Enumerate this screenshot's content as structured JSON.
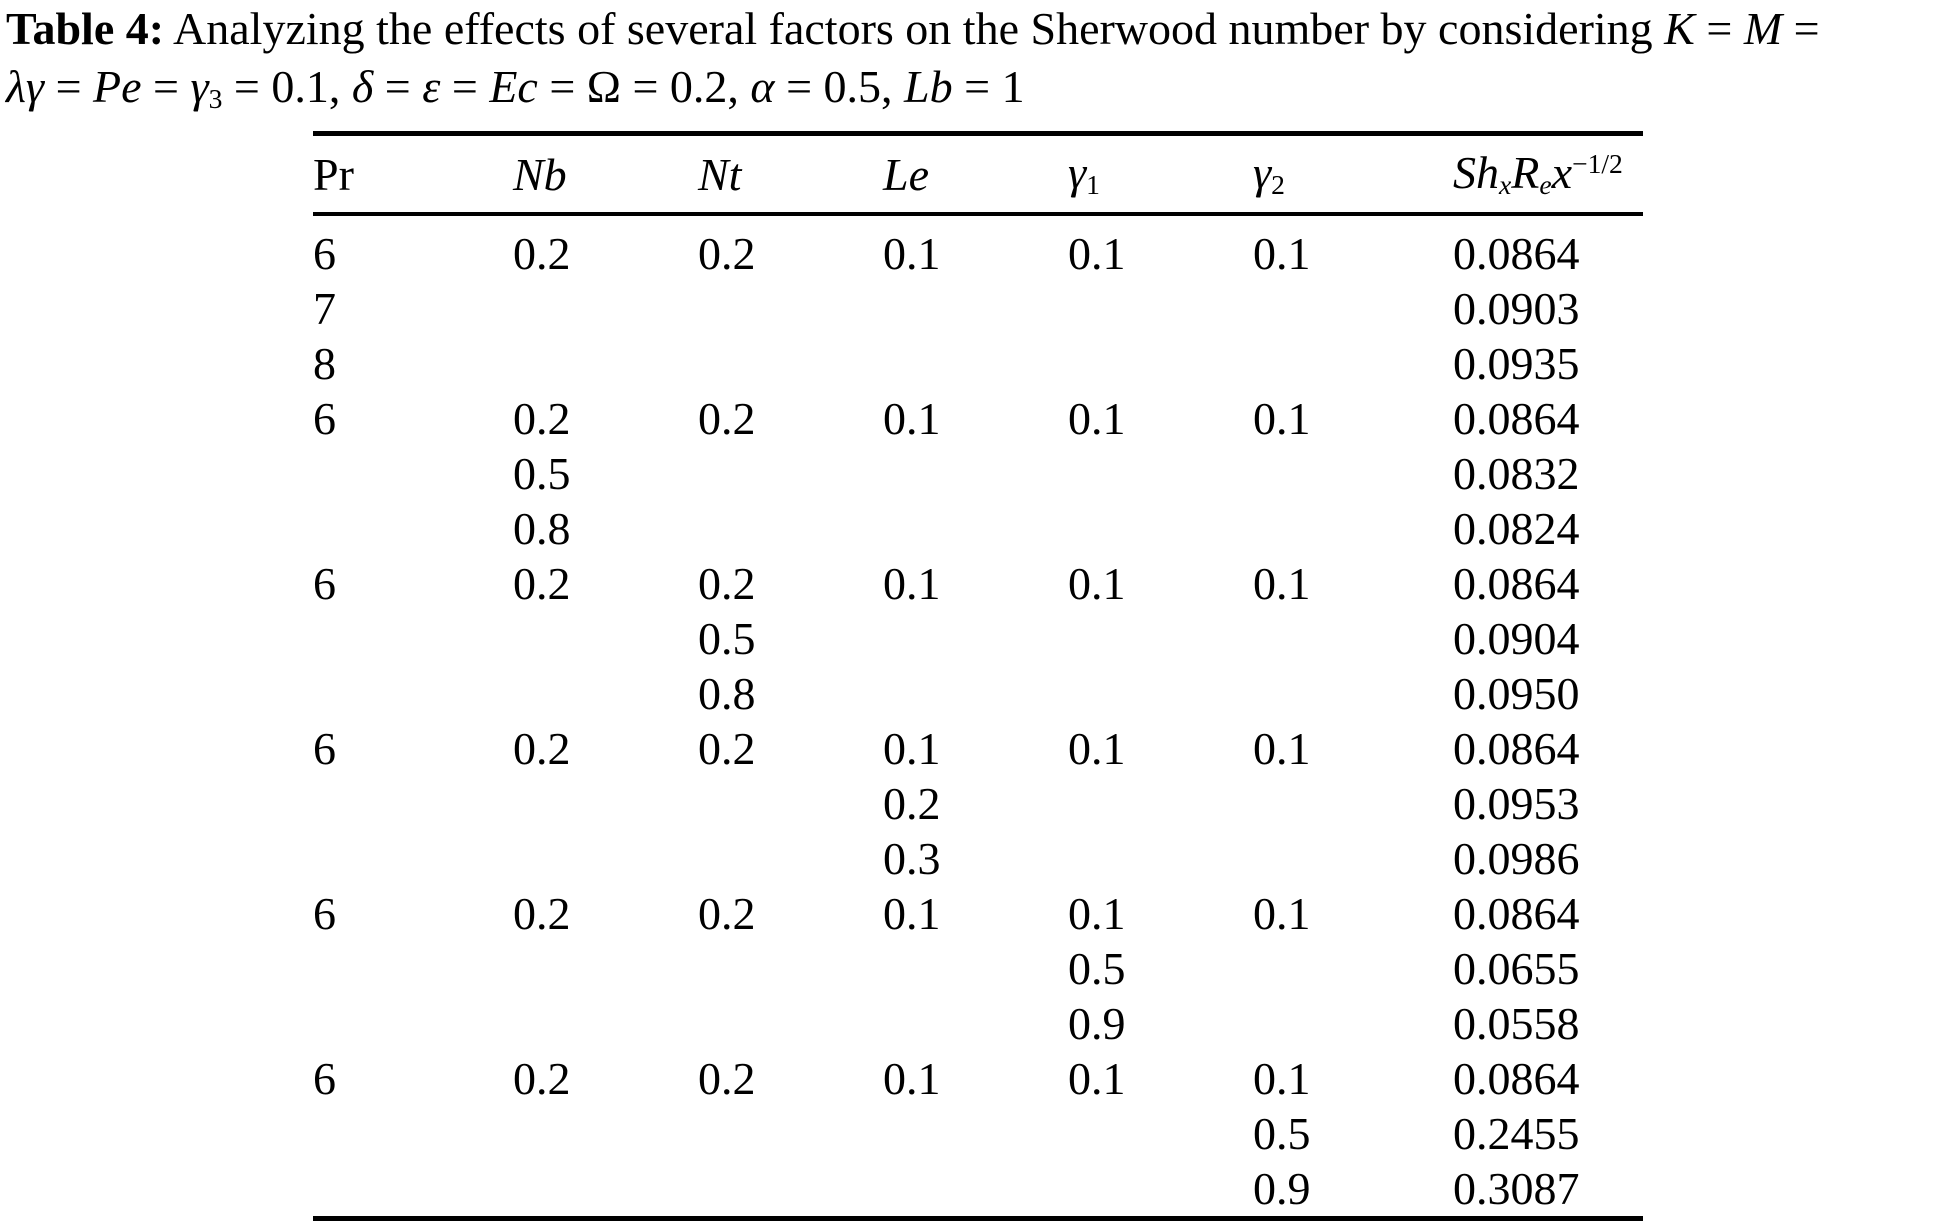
{
  "page": {
    "background": "#ffffff",
    "text_color": "#000000"
  },
  "caption": {
    "line1": [
      {
        "t": "Table 4:",
        "s": "b"
      },
      {
        "t": " Analyzing the effects of several factors on the Sherwood number by considering ",
        "s": "r"
      },
      {
        "t": "K",
        "s": "i"
      },
      {
        "t": " = ",
        "s": "r"
      },
      {
        "t": "M",
        "s": "i"
      },
      {
        "t": " =",
        "s": "r"
      }
    ],
    "line2": [
      {
        "t": "λγ",
        "s": "i"
      },
      {
        "t": " = ",
        "s": "r"
      },
      {
        "t": "Pe",
        "s": "i"
      },
      {
        "t": " = ",
        "s": "r"
      },
      {
        "t": "γ",
        "s": "i"
      },
      {
        "t": "3",
        "s": "sub"
      },
      {
        "t": " = 0.1, ",
        "s": "r"
      },
      {
        "t": "δ",
        "s": "i"
      },
      {
        "t": " = ",
        "s": "r"
      },
      {
        "t": "ε",
        "s": "i"
      },
      {
        "t": " = ",
        "s": "r"
      },
      {
        "t": "Ec",
        "s": "i"
      },
      {
        "t": " = ",
        "s": "r"
      },
      {
        "t": "Ω",
        "s": "r"
      },
      {
        "t": " = 0.2, ",
        "s": "r"
      },
      {
        "t": "α",
        "s": "i"
      },
      {
        "t": " = 0.5, ",
        "s": "r"
      },
      {
        "t": "Lb",
        "s": "i"
      },
      {
        "t": " = 1",
        "s": "r"
      }
    ]
  },
  "table": {
    "headers": [
      {
        "name": "Pr",
        "segments": [
          {
            "t": "Pr",
            "s": "r"
          }
        ]
      },
      {
        "name": "Nb",
        "segments": [
          {
            "t": "Nb",
            "s": "i"
          }
        ]
      },
      {
        "name": "Nt",
        "segments": [
          {
            "t": "Nt",
            "s": "i"
          }
        ]
      },
      {
        "name": "Le",
        "segments": [
          {
            "t": "Le",
            "s": "i"
          }
        ]
      },
      {
        "name": "gamma1",
        "segments": [
          {
            "t": "γ",
            "s": "i"
          },
          {
            "t": "1",
            "s": "sub"
          }
        ]
      },
      {
        "name": "gamma2",
        "segments": [
          {
            "t": "γ",
            "s": "i"
          },
          {
            "t": "2",
            "s": "sub"
          }
        ]
      },
      {
        "name": "ShxRex-1/2",
        "segments": [
          {
            "t": "Sh",
            "s": "i"
          },
          {
            "t": "x",
            "s": "isub"
          },
          {
            "t": "R",
            "s": "i"
          },
          {
            "t": "e",
            "s": "isub"
          },
          {
            "t": "x",
            "s": "i"
          },
          {
            "t": "−1/2",
            "s": "sup"
          }
        ]
      }
    ],
    "rows": [
      [
        "6",
        "0.2",
        "0.2",
        "0.1",
        "0.1",
        "0.1",
        "0.0864"
      ],
      [
        "7",
        "",
        "",
        "",
        "",
        "",
        "0.0903"
      ],
      [
        "8",
        "",
        "",
        "",
        "",
        "",
        "0.0935"
      ],
      [
        "6",
        "0.2",
        "0.2",
        "0.1",
        "0.1",
        "0.1",
        "0.0864"
      ],
      [
        "",
        "0.5",
        "",
        "",
        "",
        "",
        "0.0832"
      ],
      [
        "",
        "0.8",
        "",
        "",
        "",
        "",
        "0.0824"
      ],
      [
        "6",
        "0.2",
        "0.2",
        "0.1",
        "0.1",
        "0.1",
        "0.0864"
      ],
      [
        "",
        "",
        "0.5",
        "",
        "",
        "",
        "0.0904"
      ],
      [
        "",
        "",
        "0.8",
        "",
        "",
        "",
        "0.0950"
      ],
      [
        "6",
        "0.2",
        "0.2",
        "0.1",
        "0.1",
        "0.1",
        "0.0864"
      ],
      [
        "",
        "",
        "",
        "0.2",
        "",
        "",
        "0.0953"
      ],
      [
        "",
        "",
        "",
        "0.3",
        "",
        "",
        "0.0986"
      ],
      [
        "6",
        "0.2",
        "0.2",
        "0.1",
        "0.1",
        "0.1",
        "0.0864"
      ],
      [
        "",
        "",
        "",
        "",
        "0.5",
        "",
        "0.0655"
      ],
      [
        "",
        "",
        "",
        "",
        "0.9",
        "",
        "0.0558"
      ],
      [
        "6",
        "0.2",
        "0.2",
        "0.1",
        "0.1",
        "0.1",
        "0.0864"
      ],
      [
        "",
        "",
        "",
        "",
        "",
        "0.5",
        "0.2455"
      ],
      [
        "",
        "",
        "",
        "",
        "",
        "0.9",
        "0.3087"
      ]
    ]
  },
  "chart_data": {
    "type": "table",
    "title": "Table 4: Analyzing the effects of several factors on the Sherwood number by considering K = M = λγ = Pe = γ3 = 0.1, δ = ε = Ec = Ω = 0.2, α = 0.5, Lb = 1",
    "columns": [
      "Pr",
      "Nb",
      "Nt",
      "Le",
      "γ1",
      "γ2",
      "Sh_x R_e x^(-1/2)"
    ],
    "rows": [
      [
        "6",
        "0.2",
        "0.2",
        "0.1",
        "0.1",
        "0.1",
        "0.0864"
      ],
      [
        "7",
        "",
        "",
        "",
        "",
        "",
        "0.0903"
      ],
      [
        "8",
        "",
        "",
        "",
        "",
        "",
        "0.0935"
      ],
      [
        "6",
        "0.2",
        "0.2",
        "0.1",
        "0.1",
        "0.1",
        "0.0864"
      ],
      [
        "",
        "0.5",
        "",
        "",
        "",
        "",
        "0.0832"
      ],
      [
        "",
        "0.8",
        "",
        "",
        "",
        "",
        "0.0824"
      ],
      [
        "6",
        "0.2",
        "0.2",
        "0.1",
        "0.1",
        "0.1",
        "0.0864"
      ],
      [
        "",
        "",
        "0.5",
        "",
        "",
        "",
        "0.0904"
      ],
      [
        "",
        "",
        "0.8",
        "",
        "",
        "",
        "0.0950"
      ],
      [
        "6",
        "0.2",
        "0.2",
        "0.1",
        "0.1",
        "0.1",
        "0.0864"
      ],
      [
        "",
        "",
        "",
        "0.2",
        "",
        "",
        "0.0953"
      ],
      [
        "",
        "",
        "",
        "0.3",
        "",
        "",
        "0.0986"
      ],
      [
        "6",
        "0.2",
        "0.2",
        "0.1",
        "0.1",
        "0.1",
        "0.0864"
      ],
      [
        "",
        "",
        "",
        "",
        "0.5",
        "",
        "0.0655"
      ],
      [
        "",
        "",
        "",
        "",
        "0.9",
        "",
        "0.0558"
      ],
      [
        "6",
        "0.2",
        "0.2",
        "0.1",
        "0.1",
        "0.1",
        "0.0864"
      ],
      [
        "",
        "",
        "",
        "",
        "",
        "0.5",
        "0.2455"
      ],
      [
        "",
        "",
        "",
        "",
        "",
        "0.9",
        "0.3087"
      ]
    ]
  }
}
